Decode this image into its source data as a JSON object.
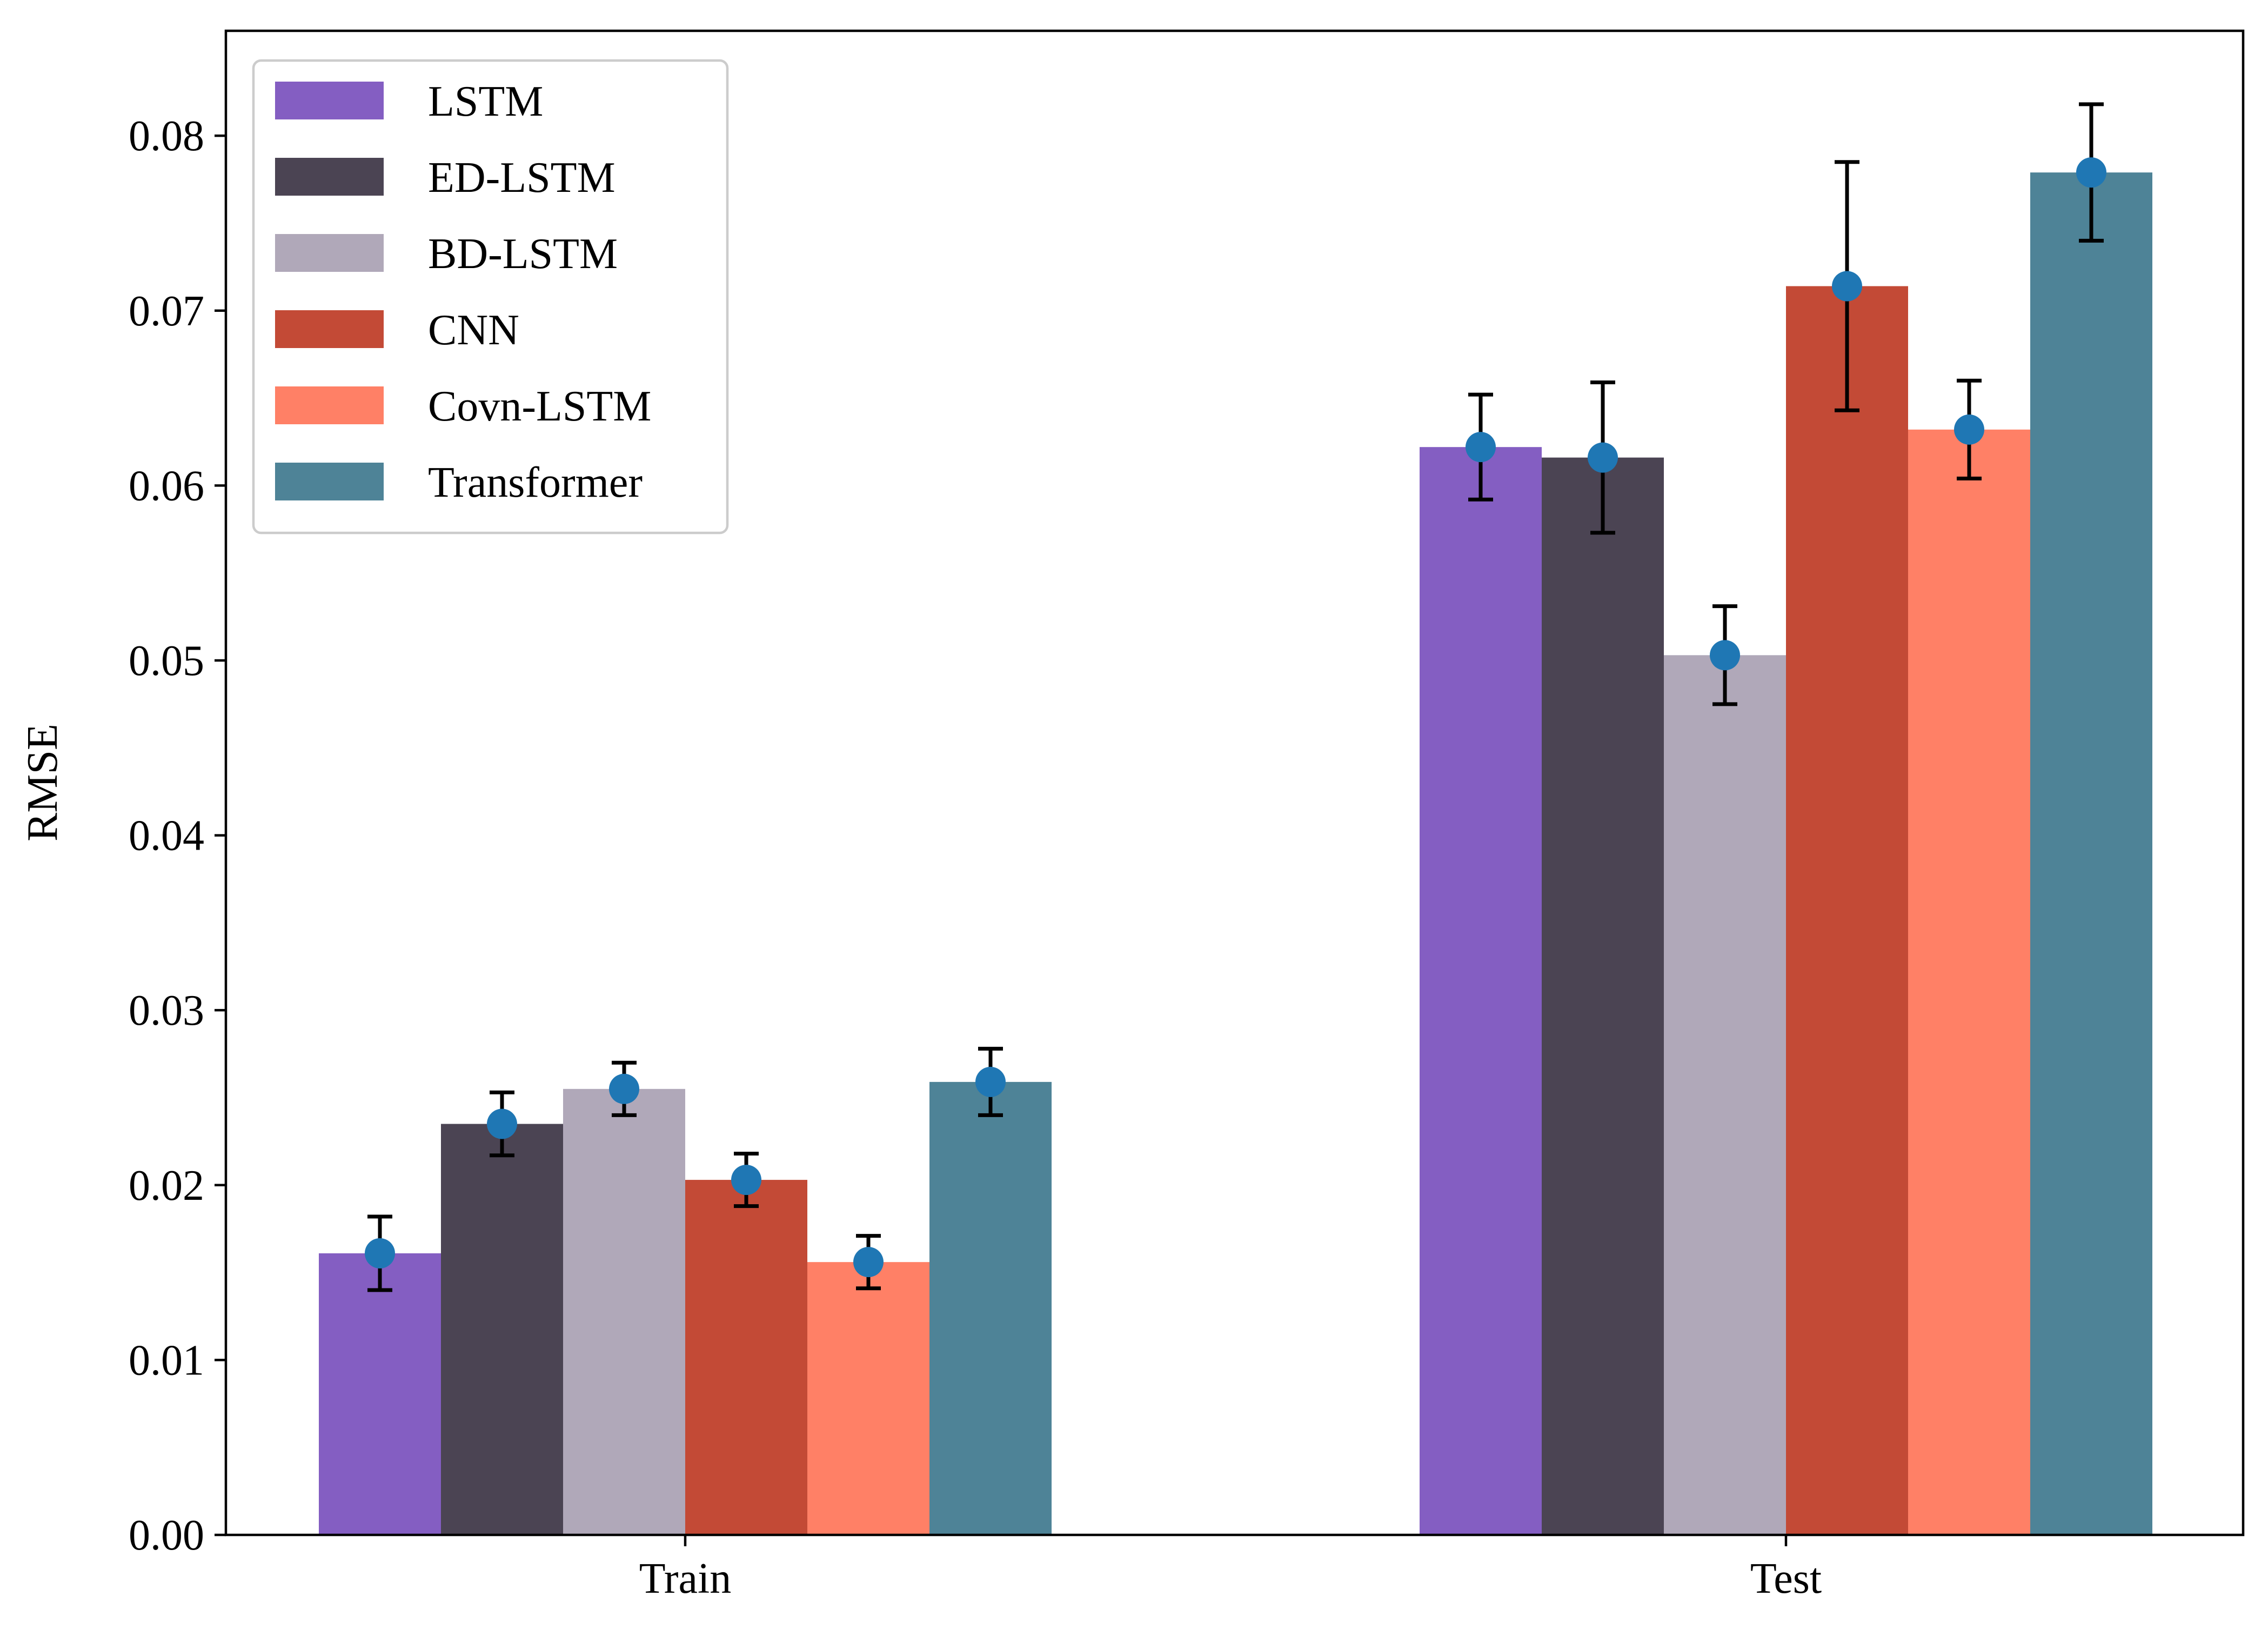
{
  "chart_data": {
    "type": "bar",
    "categories": [
      "Train",
      "Test"
    ],
    "ylabel": "RMSE",
    "xlabel": "",
    "ylim": [
      0,
      0.086
    ],
    "yticks": [
      0.0,
      0.01,
      0.02,
      0.03,
      0.04,
      0.05,
      0.06,
      0.07,
      0.08
    ],
    "ytick_labels": [
      "0.00",
      "0.01",
      "0.02",
      "0.03",
      "0.04",
      "0.05",
      "0.06",
      "0.07",
      "0.08"
    ],
    "grid": false,
    "legend_position": "top-left",
    "marker_color": "#1f77b4",
    "series": [
      {
        "name": "LSTM",
        "color": "#845EC2",
        "values": [
          0.0161,
          0.0622
        ],
        "errors": [
          0.0021,
          0.003
        ]
      },
      {
        "name": "ED-LSTM",
        "color": "#4B4453",
        "values": [
          0.0235,
          0.0616
        ],
        "errors": [
          0.0018,
          0.0043
        ]
      },
      {
        "name": "BD-LSTM",
        "color": "#B0A8B9",
        "values": [
          0.0255,
          0.0503
        ],
        "errors": [
          0.0015,
          0.0028
        ]
      },
      {
        "name": "CNN",
        "color": "#C34A36",
        "values": [
          0.0203,
          0.0714
        ],
        "errors": [
          0.0015,
          0.0071
        ]
      },
      {
        "name": "Covn-LSTM",
        "color": "#FF8066",
        "values": [
          0.0156,
          0.0632
        ],
        "errors": [
          0.0015,
          0.0028
        ]
      },
      {
        "name": "Transformer",
        "color": "#4E8397",
        "values": [
          0.0259,
          0.0779
        ],
        "errors": [
          0.0019,
          0.0039
        ]
      }
    ]
  }
}
